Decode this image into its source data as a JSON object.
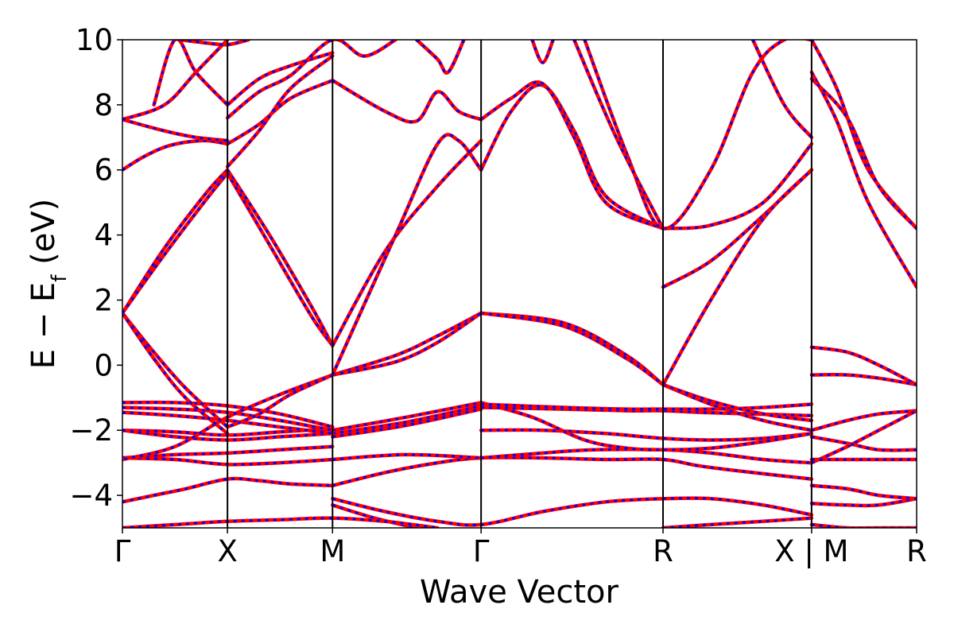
{
  "chart_data": {
    "type": "line",
    "xlabel": "Wave Vector",
    "ylabel_main": "E − E",
    "ylabel_sub": "f",
    "ylabel_unit": " (eV)",
    "ylim": [
      -5,
      10
    ],
    "yticks": [
      -4,
      -2,
      0,
      2,
      4,
      6,
      8,
      10
    ],
    "ytick_labels": [
      "−4",
      "−2",
      "0",
      "2",
      "4",
      "6",
      "8",
      "10"
    ],
    "kpoints": [
      {
        "label": "Γ",
        "x": 0
      },
      {
        "label": "X",
        "x": 1
      },
      {
        "label": "M",
        "x": 2
      },
      {
        "label": "Γ",
        "x": 3.414
      },
      {
        "label": "R",
        "x": 5.146
      },
      {
        "label": "X | M",
        "x": 6.56
      },
      {
        "label": "R",
        "x": 7.56
      }
    ],
    "xlim": [
      0,
      7.56
    ],
    "series_colors": {
      "primary": "#ff0000",
      "overlay": "#0000ff"
    },
    "bands": [
      {
        "x": [
          0,
          0.3,
          0.6,
          1,
          1.3,
          1.6,
          2
        ],
        "y": [
          -4.2,
          -4.0,
          -3.8,
          -3.5,
          -3.55,
          -3.65,
          -3.7
        ]
      },
      {
        "x": [
          2,
          2.5,
          3.0,
          3.414,
          4.0,
          4.6,
          5.146,
          5.5,
          6.0,
          6.56
        ],
        "y": [
          -3.7,
          -3.3,
          -3.0,
          -2.85,
          -2.85,
          -2.9,
          -2.9,
          -3.1,
          -3.3,
          -3.5
        ]
      },
      {
        "x": [
          0,
          0.5,
          1,
          1.5,
          2
        ],
        "y": [
          -2.85,
          -2.9,
          -3.05,
          -3.0,
          -2.9
        ]
      },
      {
        "x": [
          0,
          0.5,
          1,
          1.5,
          2
        ],
        "y": [
          -2.85,
          -2.75,
          -2.7,
          -2.6,
          -2.5
        ]
      },
      {
        "x": [
          2,
          2.7,
          3.414
        ],
        "y": [
          -2.9,
          -2.75,
          -2.85
        ]
      },
      {
        "x": [
          3.414,
          4.0,
          4.5,
          5.146,
          5.6,
          6.1,
          6.56
        ],
        "y": [
          -2.85,
          -2.7,
          -2.6,
          -2.6,
          -2.7,
          -2.9,
          -3.0
        ]
      },
      {
        "x": [
          0,
          0.5,
          1,
          1.5,
          2
        ],
        "y": [
          -2.0,
          -2.05,
          -2.15,
          -2.05,
          -1.95
        ]
      },
      {
        "x": [
          0,
          0.5,
          1,
          1.5,
          2
        ],
        "y": [
          -2.0,
          -2.2,
          -2.3,
          -2.2,
          -2.1
        ]
      },
      {
        "x": [
          2,
          2.7,
          3.414
        ],
        "y": [
          -2.0,
          -1.6,
          -1.15
        ]
      },
      {
        "x": [
          2,
          2.7,
          3.414
        ],
        "y": [
          -2.1,
          -1.75,
          -1.25
        ]
      },
      {
        "x": [
          2,
          2.7,
          3.414
        ],
        "y": [
          -2.2,
          -1.85,
          -1.35
        ]
      },
      {
        "x": [
          3.414,
          4.0,
          4.6,
          5.146,
          5.6,
          6.1,
          6.56
        ],
        "y": [
          -2.0,
          -2.0,
          -2.1,
          -2.25,
          -2.3,
          -2.25,
          -2.1
        ]
      },
      {
        "x": [
          3.414,
          3.9,
          4.4,
          4.8,
          5.146,
          5.6,
          6.1,
          6.56
        ],
        "y": [
          -1.15,
          -1.6,
          -2.3,
          -2.55,
          -2.6,
          -2.55,
          -2.35,
          -2.1
        ]
      },
      {
        "x": [
          0,
          0.5,
          1,
          1.5,
          2
        ],
        "y": [
          -1.15,
          -1.15,
          -1.25,
          -1.5,
          -1.9
        ]
      },
      {
        "x": [
          0,
          0.5,
          1,
          1.5,
          2
        ],
        "y": [
          -1.3,
          -1.35,
          -1.45,
          -1.7,
          -2.0
        ]
      },
      {
        "x": [
          0,
          0.5,
          1,
          1.5,
          2
        ],
        "y": [
          -1.45,
          -1.55,
          -1.7,
          -1.9,
          -2.1
        ]
      },
      {
        "x": [
          3.414,
          4.2,
          4.8,
          5.146,
          5.5,
          6.0,
          6.56
        ],
        "y": [
          -1.3,
          -1.35,
          -1.4,
          -1.4,
          -1.45,
          -1.5,
          -1.55
        ]
      },
      {
        "x": [
          3.414,
          4.2,
          4.8,
          5.146,
          5.6,
          6.1,
          6.56
        ],
        "y": [
          -1.2,
          -1.3,
          -1.35,
          -1.35,
          -1.35,
          -1.3,
          -1.2
        ]
      },
      {
        "x": [
          5.146,
          5.6,
          6.1,
          6.56
        ],
        "y": [
          -0.6,
          -1.2,
          -1.7,
          -2.0
        ]
      },
      {
        "x": [
          5.146,
          5.6,
          6.1,
          6.56
        ],
        "y": [
          -0.6,
          -1.1,
          -1.5,
          -1.7
        ]
      },
      {
        "x": [
          3.414,
          4.2,
          4.8,
          5.146
        ],
        "y": [
          1.6,
          1.3,
          0.3,
          -0.6
        ]
      },
      {
        "x": [
          3.414,
          4.2,
          4.8,
          5.146
        ],
        "y": [
          1.6,
          1.2,
          0.2,
          -0.6
        ]
      },
      {
        "x": [
          2,
          2.6,
          3.0,
          3.414
        ],
        "y": [
          -0.3,
          0.3,
          0.9,
          1.6
        ]
      },
      {
        "x": [
          2,
          2.6,
          3.0,
          3.414
        ],
        "y": [
          -0.3,
          0.1,
          0.7,
          1.6
        ]
      },
      {
        "x": [
          2,
          1.5,
          1,
          0.5,
          0
        ],
        "y": [
          -0.3,
          -0.9,
          -1.6,
          -2.5,
          -2.9
        ]
      },
      {
        "x": [
          2,
          1.6,
          1.3,
          1.0
        ],
        "y": [
          -0.3,
          -0.9,
          -1.5,
          -1.9
        ]
      },
      {
        "x": [
          0,
          0.3,
          0.6,
          1
        ],
        "y": [
          1.6,
          0.4,
          -0.7,
          -1.9
        ]
      },
      {
        "x": [
          0,
          0.3,
          0.6,
          1
        ],
        "y": [
          1.6,
          0.2,
          -1.0,
          -2.1
        ]
      },
      {
        "x": [
          0,
          0.4,
          0.8,
          1
        ],
        "y": [
          1.6,
          3.6,
          5.3,
          6.0
        ]
      },
      {
        "x": [
          0,
          0.4,
          0.8,
          1
        ],
        "y": [
          1.6,
          3.4,
          5.1,
          5.9
        ]
      },
      {
        "x": [
          1,
          1.4,
          1.8,
          2
        ],
        "y": [
          6.0,
          4.0,
          1.8,
          0.6
        ]
      },
      {
        "x": [
          1,
          1.4,
          1.8,
          2
        ],
        "y": [
          5.9,
          3.7,
          1.5,
          0.6
        ]
      },
      {
        "x": [
          2,
          2.5,
          3.0,
          3.414
        ],
        "y": [
          0.6,
          3.5,
          5.5,
          6.9
        ]
      },
      {
        "x": [
          2,
          2.6,
          3.0,
          3.2,
          3.414
        ],
        "y": [
          -0.3,
          4.0,
          6.8,
          6.9,
          6.0
        ]
      },
      {
        "x": [
          3.414,
          3.7,
          4.0,
          4.3,
          4.6,
          5.146
        ],
        "y": [
          6.0,
          7.8,
          8.6,
          7.2,
          5.2,
          4.2
        ]
      },
      {
        "x": [
          3.414,
          3.7,
          4.0,
          4.3,
          4.6,
          5.146
        ],
        "y": [
          7.55,
          8.2,
          8.65,
          7.0,
          5.0,
          4.2
        ]
      },
      {
        "x": [
          5.146,
          5.6,
          6.1,
          6.56
        ],
        "y": [
          4.2,
          4.3,
          5.0,
          6.8
        ]
      },
      {
        "x": [
          5.146,
          5.6,
          6.1,
          6.56
        ],
        "y": [
          2.4,
          3.2,
          4.6,
          6.0
        ]
      },
      {
        "x": [
          5.146,
          5.6,
          6.1,
          6.56
        ],
        "y": [
          -0.6,
          2.0,
          4.5,
          6.0
        ]
      },
      {
        "x": [
          4.4,
          4.8,
          5.146,
          5.6,
          6.0,
          6.3,
          6.56
        ],
        "y": [
          10.0,
          6.5,
          4.2,
          6.0,
          9.0,
          10.0,
          10.0
        ]
      },
      {
        "x": [
          4.3,
          4.7,
          5.146
        ],
        "y": [
          10.0,
          7.0,
          4.2
        ]
      },
      {
        "x": [
          6.0,
          6.3,
          6.56
        ],
        "y": [
          10.0,
          8.0,
          7.0
        ]
      },
      {
        "x": [
          0,
          0.2,
          0.4,
          0.6,
          0.8,
          1
        ],
        "y": [
          6.0,
          6.4,
          6.7,
          6.85,
          6.9,
          6.8
        ]
      },
      {
        "x": [
          1,
          1.3,
          1.6,
          2
        ],
        "y": [
          6.8,
          7.4,
          8.2,
          8.75
        ]
      },
      {
        "x": [
          1,
          1.3,
          1.6,
          2
        ],
        "y": [
          6.1,
          7.2,
          8.5,
          9.5
        ]
      },
      {
        "x": [
          2,
          2.5,
          2.8,
          3.0,
          3.2,
          3.414
        ],
        "y": [
          8.75,
          7.8,
          7.5,
          8.4,
          7.8,
          7.55
        ]
      },
      {
        "x": [
          0,
          0.4,
          0.7,
          1
        ],
        "y": [
          7.55,
          7.2,
          7.0,
          6.9
        ]
      },
      {
        "x": [
          0,
          0.4,
          0.7,
          1
        ],
        "y": [
          7.55,
          8.0,
          9.0,
          10.0
        ]
      },
      {
        "x": [
          0.3,
          0.5,
          0.7,
          1.0
        ],
        "y": [
          8.0,
          10.0,
          9.0,
          8.0
        ]
      },
      {
        "x": [
          1.0,
          1.3,
          1.6,
          2.0
        ],
        "y": [
          8.0,
          8.8,
          9.2,
          9.6
        ]
      },
      {
        "x": [
          1.0,
          1.3,
          1.6,
          2.0,
          2.3,
          2.6
        ],
        "y": [
          7.6,
          8.4,
          8.9,
          10.0,
          9.5,
          10.0
        ]
      },
      {
        "x": [
          0.55,
          0.8,
          1.0,
          1.2
        ],
        "y": [
          10.0,
          9.9,
          9.85,
          10.0
        ]
      },
      {
        "x": [
          2.8,
          3.0,
          3.1,
          3.25
        ],
        "y": [
          10.0,
          9.4,
          9.0,
          10.0
        ]
      },
      {
        "x": [
          3.9,
          4.0,
          4.1
        ],
        "y": [
          10.0,
          9.3,
          10.0
        ]
      },
      {
        "x": [
          6.56,
          6.8,
          7.1,
          7.56
        ],
        "y": [
          10.0,
          8.5,
          6.0,
          4.2
        ]
      },
      {
        "x": [
          6.56,
          6.8,
          7.1,
          7.56
        ],
        "y": [
          9.0,
          7.5,
          5.0,
          2.4
        ]
      },
      {
        "x": [
          6.56,
          6.9,
          7.2,
          7.56
        ],
        "y": [
          8.8,
          7.6,
          5.5,
          4.2
        ]
      },
      {
        "x": [
          6.56,
          6.9,
          7.2,
          7.56
        ],
        "y": [
          0.55,
          0.4,
          0.0,
          -0.6
        ]
      },
      {
        "x": [
          6.56,
          6.9,
          7.2,
          7.56
        ],
        "y": [
          -0.3,
          -0.3,
          -0.4,
          -0.6
        ]
      },
      {
        "x": [
          6.56,
          6.9,
          7.2,
          7.56
        ],
        "y": [
          -2.0,
          -1.7,
          -1.5,
          -1.4
        ]
      },
      {
        "x": [
          6.56,
          6.9,
          7.2,
          7.56
        ],
        "y": [
          -3.0,
          -2.5,
          -2.0,
          -1.4
        ]
      },
      {
        "x": [
          6.56,
          6.9,
          7.2,
          7.56
        ],
        "y": [
          -2.2,
          -2.4,
          -2.6,
          -2.6
        ]
      },
      {
        "x": [
          6.56,
          6.9,
          7.2,
          7.56
        ],
        "y": [
          -2.9,
          -2.9,
          -2.9,
          -2.9
        ]
      },
      {
        "x": [
          6.56,
          6.9,
          7.2,
          7.56
        ],
        "y": [
          -3.7,
          -3.8,
          -4.0,
          -4.1
        ]
      },
      {
        "x": [
          6.56,
          6.9,
          7.2,
          7.56
        ],
        "y": [
          -4.25,
          -4.3,
          -4.3,
          -4.1
        ]
      },
      {
        "x": [
          6.56,
          6.9,
          7.2,
          7.56
        ],
        "y": [
          -4.9,
          -5.0,
          -5.0,
          -5.0
        ]
      },
      {
        "x": [
          2,
          2.5,
          3.0,
          3.414,
          4.0,
          4.6,
          5.146
        ],
        "y": [
          -4.1,
          -4.5,
          -4.8,
          -4.9,
          -4.5,
          -4.2,
          -4.1
        ]
      },
      {
        "x": [
          2,
          2.4,
          2.8
        ],
        "y": [
          -4.3,
          -4.7,
          -5.0
        ]
      },
      {
        "x": [
          5.146,
          5.6,
          6.1,
          6.56
        ],
        "y": [
          -4.1,
          -4.1,
          -4.3,
          -4.6
        ]
      },
      {
        "x": [
          0,
          0.5,
          1,
          1.5,
          2,
          2.5,
          3.0
        ],
        "y": [
          -5.0,
          -4.9,
          -4.8,
          -4.75,
          -4.7,
          -4.8,
          -5.0
        ]
      },
      {
        "x": [
          5.146,
          5.6,
          6.1,
          6.56
        ],
        "y": [
          -5.0,
          -4.9,
          -4.8,
          -4.7
        ]
      }
    ]
  }
}
